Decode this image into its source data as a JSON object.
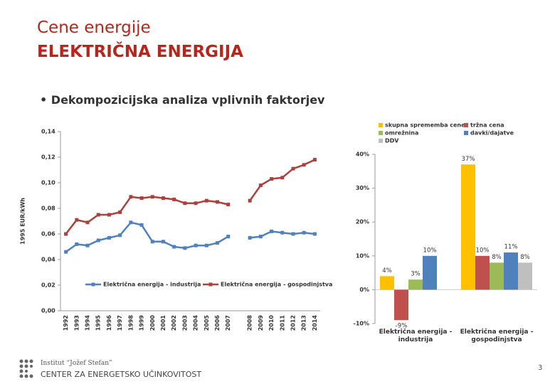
{
  "slide": {
    "title_line1": "Cene energije",
    "title_line2": "ELEKTRIČNA ENERGIJA",
    "bullet": "Dekompozicijska analiza vplivnih faktorjev",
    "footer_institute": "Institut “Jožef Stefan”",
    "footer_center": "CENTER ZA ENERGETSKO UČINKOVITOST",
    "page_number": "3"
  },
  "chart_data": [
    {
      "type": "line",
      "y_label": "1995 EUR/kWh",
      "categories": [
        "1992",
        "1993",
        "1994",
        "1995",
        "1996",
        "1997",
        "1998",
        "1999",
        "2000",
        "2001",
        "2002",
        "2003",
        "2004",
        "2005",
        "2006",
        "2007",
        null,
        "2008",
        "2009",
        "2010",
        "2011",
        "2012",
        "2013",
        "2014"
      ],
      "series": [
        {
          "name": "Električna energija - industrija",
          "color": "#4f81bd",
          "values": [
            0.046,
            0.052,
            0.051,
            0.055,
            0.057,
            0.059,
            0.069,
            0.067,
            0.054,
            0.054,
            0.05,
            0.049,
            0.051,
            0.051,
            0.053,
            0.058,
            null,
            0.057,
            0.058,
            0.062,
            0.061,
            0.06,
            0.061,
            0.06
          ]
        },
        {
          "name": "Električna energija - gospodinjstva",
          "color": "#a9413d",
          "values": [
            0.06,
            0.071,
            0.069,
            0.075,
            0.075,
            0.077,
            0.089,
            0.088,
            0.089,
            0.088,
            0.087,
            0.084,
            0.084,
            0.086,
            0.085,
            0.083,
            null,
            0.086,
            0.098,
            0.103,
            0.104,
            0.111,
            0.114,
            0.118
          ]
        }
      ],
      "ylim": [
        0,
        0.14
      ],
      "yticks": [
        {
          "value": 0,
          "label": "0,00"
        },
        {
          "value": 0.02,
          "label": "0,02"
        },
        {
          "value": 0.04,
          "label": "0,04"
        },
        {
          "value": 0.06,
          "label": "0,06"
        },
        {
          "value": 0.08,
          "label": "0,08"
        },
        {
          "value": 0.1,
          "label": "0,10"
        },
        {
          "value": 0.12,
          "label": "0,12"
        },
        {
          "value": 0.14,
          "label": "0,14"
        }
      ],
      "grid": false,
      "legend": "bottom"
    },
    {
      "type": "bar",
      "categories": [
        "Električna energija - industrija",
        "Električna energija - gospodinjstva"
      ],
      "series": [
        {
          "name": "skupna sprememba cene",
          "color": "#ffc000",
          "values": [
            4,
            37
          ],
          "value_labels": [
            "4%",
            "37%"
          ]
        },
        {
          "name": "tržna cena",
          "color": "#c0504d",
          "values": [
            -9,
            10
          ],
          "value_labels": [
            "-9%",
            "10%"
          ]
        },
        {
          "name": "omrežnina",
          "color": "#9bbb59",
          "values": [
            3,
            8
          ],
          "value_labels": [
            "3%",
            "8%"
          ]
        },
        {
          "name": "davki/dajatve",
          "color": "#4f81bd",
          "values": [
            10,
            11
          ],
          "value_labels": [
            "10%",
            "11%"
          ]
        },
        {
          "name": "DDV",
          "color": "#bfbfbf",
          "values": [
            null,
            8
          ],
          "value_labels": [
            null,
            "8%"
          ]
        }
      ],
      "ylim": [
        -10,
        40
      ],
      "yticks": [
        {
          "value": -10,
          "label": "-10%"
        },
        {
          "value": 0,
          "label": "0%"
        },
        {
          "value": 10,
          "label": "10%"
        },
        {
          "value": 20,
          "label": "20%"
        },
        {
          "value": 30,
          "label": "30%"
        },
        {
          "value": 40,
          "label": "40%"
        }
      ],
      "grid": false,
      "legend": "top"
    }
  ]
}
